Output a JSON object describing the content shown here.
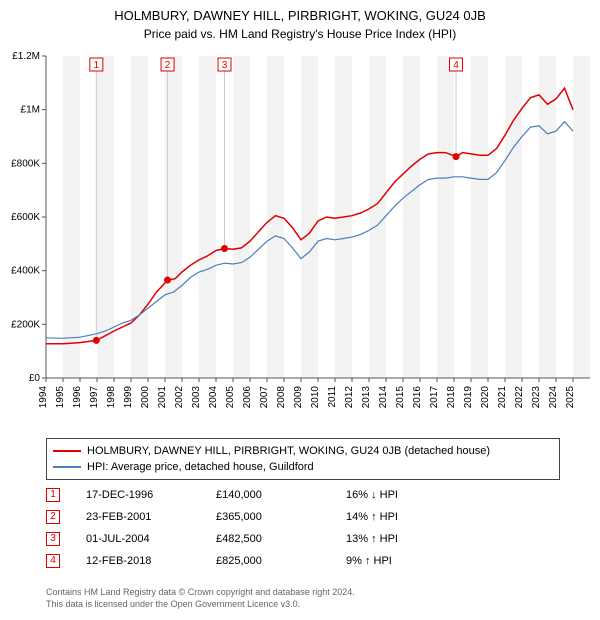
{
  "title": "HOLMBURY, DAWNEY HILL, PIRBRIGHT, WOKING, GU24 0JB",
  "subtitle": "Price paid vs. HM Land Registry's House Price Index (HPI)",
  "chart": {
    "type": "line",
    "background_color": "#ffffff",
    "grid_color": "#ffffff",
    "band_odd_color": "#f3f3f3",
    "band_even_color": "#ffffff",
    "axis_color": "#555555",
    "tick_font_size": 10,
    "x_years": [
      1994,
      1995,
      1996,
      1997,
      1998,
      1999,
      2000,
      2001,
      2002,
      2003,
      2004,
      2005,
      2006,
      2007,
      2008,
      2009,
      2010,
      2011,
      2012,
      2013,
      2014,
      2015,
      2016,
      2017,
      2018,
      2019,
      2020,
      2021,
      2022,
      2023,
      2024,
      2025
    ],
    "x_min": 1994,
    "x_max": 2026,
    "y_min": 0,
    "y_max": 1200000,
    "y_ticks": [
      0,
      200000,
      400000,
      600000,
      800000,
      1000000,
      1200000
    ],
    "y_tick_labels": [
      "£0",
      "£200K",
      "£400K",
      "£600K",
      "£800K",
      "£1M",
      "£1.2M"
    ],
    "series": [
      {
        "name": "price_paid",
        "color": "#e00000",
        "width": 1.5,
        "points": [
          [
            1994.0,
            128000
          ],
          [
            1995.0,
            128000
          ],
          [
            1996.0,
            132000
          ],
          [
            1996.96,
            140000
          ],
          [
            1997.5,
            158000
          ],
          [
            1998.0,
            175000
          ],
          [
            1998.5,
            190000
          ],
          [
            1999.0,
            205000
          ],
          [
            1999.5,
            235000
          ],
          [
            2000.0,
            275000
          ],
          [
            2000.5,
            320000
          ],
          [
            2001.15,
            365000
          ],
          [
            2001.6,
            370000
          ],
          [
            2002.0,
            395000
          ],
          [
            2002.5,
            420000
          ],
          [
            2003.0,
            440000
          ],
          [
            2003.5,
            455000
          ],
          [
            2004.0,
            475000
          ],
          [
            2004.5,
            482500
          ],
          [
            2005.0,
            480000
          ],
          [
            2005.5,
            485000
          ],
          [
            2006.0,
            510000
          ],
          [
            2006.5,
            545000
          ],
          [
            2007.0,
            580000
          ],
          [
            2007.5,
            605000
          ],
          [
            2008.0,
            595000
          ],
          [
            2008.5,
            560000
          ],
          [
            2009.0,
            515000
          ],
          [
            2009.5,
            540000
          ],
          [
            2010.0,
            585000
          ],
          [
            2010.5,
            600000
          ],
          [
            2011.0,
            595000
          ],
          [
            2011.5,
            600000
          ],
          [
            2012.0,
            605000
          ],
          [
            2012.5,
            615000
          ],
          [
            2013.0,
            630000
          ],
          [
            2013.5,
            650000
          ],
          [
            2014.0,
            690000
          ],
          [
            2014.5,
            730000
          ],
          [
            2015.0,
            760000
          ],
          [
            2015.5,
            790000
          ],
          [
            2016.0,
            815000
          ],
          [
            2016.5,
            835000
          ],
          [
            2017.0,
            840000
          ],
          [
            2017.5,
            840000
          ],
          [
            2018.12,
            825000
          ],
          [
            2018.5,
            840000
          ],
          [
            2019.0,
            835000
          ],
          [
            2019.5,
            830000
          ],
          [
            2020.0,
            830000
          ],
          [
            2020.5,
            855000
          ],
          [
            2021.0,
            905000
          ],
          [
            2021.5,
            960000
          ],
          [
            2022.0,
            1005000
          ],
          [
            2022.5,
            1045000
          ],
          [
            2023.0,
            1055000
          ],
          [
            2023.5,
            1020000
          ],
          [
            2024.0,
            1040000
          ],
          [
            2024.5,
            1080000
          ],
          [
            2025.0,
            1000000
          ]
        ]
      },
      {
        "name": "hpi",
        "color": "#4a7ebb",
        "width": 1.2,
        "points": [
          [
            1994.0,
            150000
          ],
          [
            1995.0,
            148000
          ],
          [
            1996.0,
            152000
          ],
          [
            1997.0,
            165000
          ],
          [
            1997.5,
            175000
          ],
          [
            1998.0,
            190000
          ],
          [
            1998.5,
            205000
          ],
          [
            1999.0,
            215000
          ],
          [
            1999.5,
            235000
          ],
          [
            2000.0,
            260000
          ],
          [
            2000.5,
            285000
          ],
          [
            2001.0,
            310000
          ],
          [
            2001.5,
            320000
          ],
          [
            2002.0,
            345000
          ],
          [
            2002.5,
            375000
          ],
          [
            2003.0,
            395000
          ],
          [
            2003.5,
            405000
          ],
          [
            2004.0,
            420000
          ],
          [
            2004.5,
            428000
          ],
          [
            2005.0,
            425000
          ],
          [
            2005.5,
            430000
          ],
          [
            2006.0,
            450000
          ],
          [
            2006.5,
            480000
          ],
          [
            2007.0,
            510000
          ],
          [
            2007.5,
            530000
          ],
          [
            2008.0,
            520000
          ],
          [
            2008.5,
            485000
          ],
          [
            2009.0,
            445000
          ],
          [
            2009.5,
            470000
          ],
          [
            2010.0,
            510000
          ],
          [
            2010.5,
            520000
          ],
          [
            2011.0,
            515000
          ],
          [
            2011.5,
            520000
          ],
          [
            2012.0,
            525000
          ],
          [
            2012.5,
            535000
          ],
          [
            2013.0,
            550000
          ],
          [
            2013.5,
            570000
          ],
          [
            2014.0,
            605000
          ],
          [
            2014.5,
            640000
          ],
          [
            2015.0,
            670000
          ],
          [
            2015.5,
            695000
          ],
          [
            2016.0,
            720000
          ],
          [
            2016.5,
            740000
          ],
          [
            2017.0,
            745000
          ],
          [
            2017.5,
            745000
          ],
          [
            2018.0,
            750000
          ],
          [
            2018.5,
            750000
          ],
          [
            2019.0,
            745000
          ],
          [
            2019.5,
            740000
          ],
          [
            2020.0,
            740000
          ],
          [
            2020.5,
            765000
          ],
          [
            2021.0,
            810000
          ],
          [
            2021.5,
            860000
          ],
          [
            2022.0,
            900000
          ],
          [
            2022.5,
            935000
          ],
          [
            2023.0,
            940000
          ],
          [
            2023.5,
            910000
          ],
          [
            2024.0,
            920000
          ],
          [
            2024.5,
            955000
          ],
          [
            2025.0,
            920000
          ]
        ]
      }
    ],
    "markers": [
      {
        "n": "1",
        "x": 1996.96,
        "y": 140000
      },
      {
        "n": "2",
        "x": 2001.15,
        "y": 365000
      },
      {
        "n": "3",
        "x": 2004.5,
        "y": 482500
      },
      {
        "n": "4",
        "x": 2018.12,
        "y": 825000
      }
    ],
    "marker_border": "#e00000",
    "marker_text_color": "#e00000",
    "marker_stem_color": "#cccccc",
    "marker_size": 13,
    "legend_border": "#444444"
  },
  "legend": [
    {
      "color": "#e00000",
      "label": "HOLMBURY, DAWNEY HILL, PIRBRIGHT, WOKING, GU24 0JB (detached house)"
    },
    {
      "color": "#4a7ebb",
      "label": "HPI: Average price, detached house, Guildford"
    }
  ],
  "events": [
    {
      "n": "1",
      "date": "17-DEC-1996",
      "price": "£140,000",
      "delta": "16% ↓ HPI"
    },
    {
      "n": "2",
      "date": "23-FEB-2001",
      "price": "£365,000",
      "delta": "14% ↑ HPI"
    },
    {
      "n": "3",
      "date": "01-JUL-2004",
      "price": "£482,500",
      "delta": "13% ↑ HPI"
    },
    {
      "n": "4",
      "date": "12-FEB-2018",
      "price": "£825,000",
      "delta": "9% ↑ HPI"
    }
  ],
  "footer_line1": "Contains HM Land Registry data © Crown copyright and database right 2024.",
  "footer_line2": "This data is licensed under the Open Government Licence v3.0."
}
